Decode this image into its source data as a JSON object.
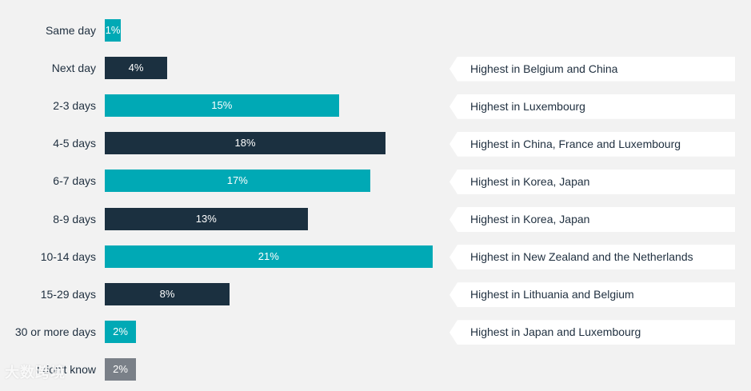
{
  "chart_data": {
    "type": "bar",
    "orientation": "horizontal",
    "categories": [
      "Same day",
      "Next day",
      "2-3 days",
      "4-5 days",
      "6-7 days",
      "8-9 days",
      "10-14 days",
      "15-29 days",
      "30 or more days",
      "I don't know"
    ],
    "values": [
      1,
      4,
      15,
      18,
      17,
      13,
      21,
      8,
      2,
      2
    ],
    "value_labels": [
      "1%",
      "4%",
      "15%",
      "18%",
      "17%",
      "13%",
      "21%",
      "8%",
      "2%",
      "2%"
    ],
    "bar_colors": [
      "#00a9b5",
      "#1b3040",
      "#00a9b5",
      "#1b3040",
      "#00a9b5",
      "#1b3040",
      "#00a9b5",
      "#1b3040",
      "#00a9b5",
      "#7a8088"
    ],
    "annotations": [
      "",
      "Highest in Belgium and China",
      "Highest in Luxembourg",
      "Highest in China, France and Luxembourg",
      "Highest in Korea, Japan",
      "Highest in Korea, Japan",
      "Highest in New Zealand and the Netherlands",
      "Highest in Lithuania and Belgium",
      "Highest in Japan and Luxembourg",
      ""
    ],
    "title": "",
    "xlabel": "",
    "ylabel": "",
    "grid": false,
    "legend": false
  },
  "watermark_text": "大数跨境",
  "colors": {
    "teal": "#00a9b5",
    "navy": "#1b3040",
    "gray": "#7a8088",
    "background": "#f2f2f2",
    "note_background": "#ffffff"
  }
}
